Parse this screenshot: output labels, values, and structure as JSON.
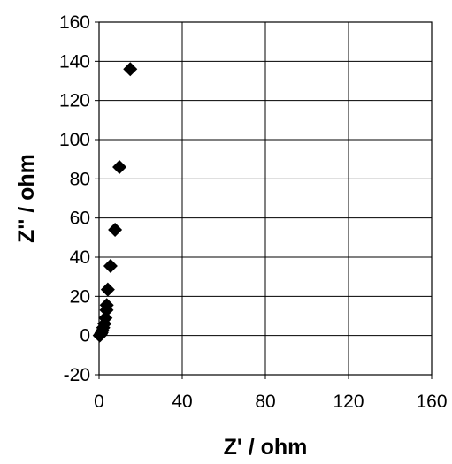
{
  "chart_data": {
    "type": "scatter",
    "title": "",
    "xlabel": "Z' / ohm",
    "ylabel": "Z'' / ohm",
    "xlim": [
      0,
      160
    ],
    "ylim": [
      -20,
      160
    ],
    "xticks": [
      "0",
      "40",
      "80",
      "120",
      "160"
    ],
    "yticks": [
      "-20",
      "0",
      "20",
      "40",
      "60",
      "80",
      "100",
      "120",
      "140",
      "160"
    ],
    "grid": true,
    "legend": "none",
    "marker": "diamond",
    "marker_color": "#000000",
    "series": [
      {
        "points": [
          {
            "x": 0.3,
            "y": 0.0
          },
          {
            "x": 0.6,
            "y": 0.3
          },
          {
            "x": 0.9,
            "y": 0.8
          },
          {
            "x": 1.2,
            "y": 1.5
          },
          {
            "x": 1.6,
            "y": 2.5
          },
          {
            "x": 2.0,
            "y": 4.0
          },
          {
            "x": 2.6,
            "y": 6.0
          },
          {
            "x": 3.1,
            "y": 9.0
          },
          {
            "x": 3.6,
            "y": 13.0
          },
          {
            "x": 3.7,
            "y": 15.5
          },
          {
            "x": 4.2,
            "y": 23.5
          },
          {
            "x": 5.5,
            "y": 35.5
          },
          {
            "x": 7.7,
            "y": 54.0
          },
          {
            "x": 9.8,
            "y": 86.0
          },
          {
            "x": 15.0,
            "y": 136.0
          }
        ]
      }
    ]
  }
}
